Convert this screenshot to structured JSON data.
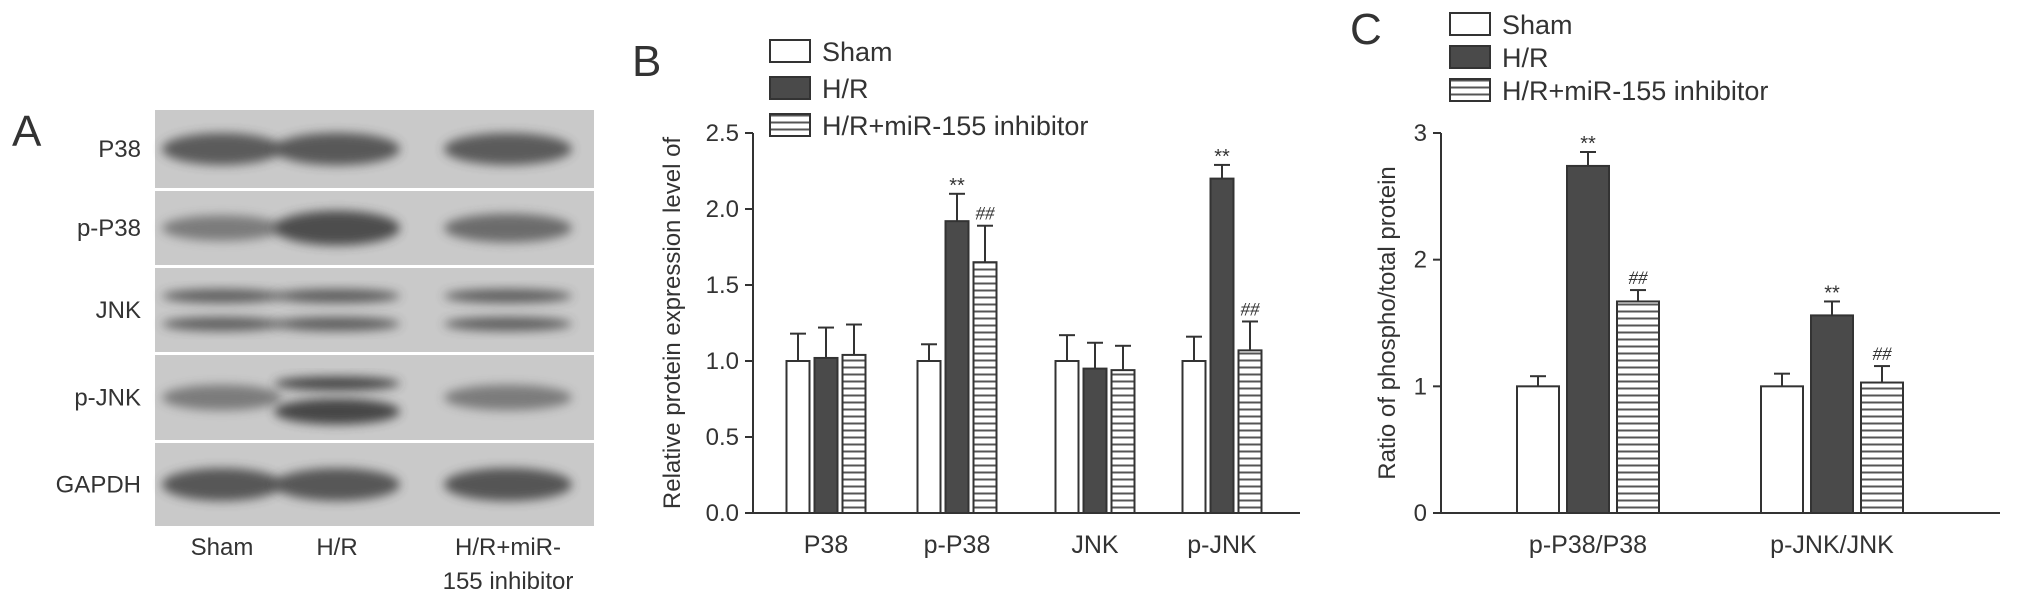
{
  "panels": {
    "a": "A",
    "b": "B",
    "c": "C"
  },
  "colors": {
    "sham": "#ffffff",
    "hr": "#4a4a4a",
    "inhibitor_hatch": "#555555",
    "axis": "#333333",
    "blot_bg": "#c9c9c9",
    "band": "#3f3f3f"
  },
  "blot": {
    "rows": [
      "P38",
      "p-P38",
      "JNK",
      "p-JNK",
      "GAPDH"
    ],
    "lanes": [
      "Sham",
      "H/R",
      "H/R+miR-",
      "155 inhibitor"
    ],
    "band_intensity": [
      [
        0.75,
        0.78,
        0.75
      ],
      [
        0.35,
        0.92,
        0.55
      ],
      [
        0.7,
        0.72,
        0.7
      ],
      [
        0.35,
        1.0,
        0.35
      ],
      [
        0.8,
        0.8,
        0.82
      ]
    ]
  },
  "chart_data": [
    {
      "type": "bar",
      "panel": "B",
      "categories": [
        "P38",
        "p-P38",
        "JNK",
        "p-JNK"
      ],
      "ylabel": "Relative protein expression level of",
      "ylim": [
        0,
        2.5
      ],
      "yticks": [
        "0.0",
        "0.5",
        "1.0",
        "1.5",
        "2.0",
        "2.5"
      ],
      "legend": [
        "Sham",
        "H/R",
        "H/R+miR-155 inhibitor"
      ],
      "series": [
        {
          "name": "Sham",
          "values": [
            1.0,
            1.0,
            1.0,
            1.0
          ],
          "errors": [
            0.18,
            0.11,
            0.17,
            0.16
          ]
        },
        {
          "name": "H/R",
          "values": [
            1.02,
            1.92,
            0.95,
            2.2
          ],
          "errors": [
            0.2,
            0.18,
            0.17,
            0.09
          ]
        },
        {
          "name": "H/R+miR-155 inhibitor",
          "values": [
            1.04,
            1.65,
            0.94,
            1.07
          ],
          "errors": [
            0.2,
            0.24,
            0.16,
            0.19
          ]
        }
      ],
      "annotations": [
        {
          "category": "p-P38",
          "series": "H/R",
          "text": "**"
        },
        {
          "category": "p-P38",
          "series": "H/R+miR-155 inhibitor",
          "text": "##"
        },
        {
          "category": "p-JNK",
          "series": "H/R",
          "text": "**"
        },
        {
          "category": "p-JNK",
          "series": "H/R+miR-155 inhibitor",
          "text": "##"
        }
      ]
    },
    {
      "type": "bar",
      "panel": "C",
      "categories": [
        "p-P38/P38",
        "p-JNK/JNK"
      ],
      "ylabel": "Ratio of phospho/total protein",
      "ylim": [
        0,
        3
      ],
      "yticks": [
        "0",
        "1",
        "2",
        "3"
      ],
      "legend": [
        "Sham",
        "H/R",
        "H/R+miR-155 inhibitor"
      ],
      "series": [
        {
          "name": "Sham",
          "values": [
            1.0,
            1.0
          ],
          "errors": [
            0.08,
            0.1
          ]
        },
        {
          "name": "H/R",
          "values": [
            2.74,
            1.56
          ],
          "errors": [
            0.11,
            0.11
          ]
        },
        {
          "name": "H/R+miR-155 inhibitor",
          "values": [
            1.67,
            1.03
          ],
          "errors": [
            0.09,
            0.13
          ]
        }
      ],
      "annotations": [
        {
          "category": "p-P38/P38",
          "series": "H/R",
          "text": "**"
        },
        {
          "category": "p-P38/P38",
          "series": "H/R+miR-155 inhibitor",
          "text": "##"
        },
        {
          "category": "p-JNK/JNK",
          "series": "H/R",
          "text": "**"
        },
        {
          "category": "p-JNK/JNK",
          "series": "H/R+miR-155 inhibitor",
          "text": "##"
        }
      ]
    }
  ]
}
